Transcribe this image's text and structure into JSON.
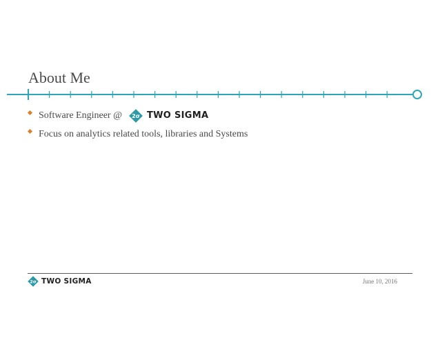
{
  "slide": {
    "title": "About Me",
    "bullets": [
      {
        "text": "Software Engineer @",
        "logo_text": "TWO SIGMA"
      },
      {
        "text": "Focus on analytics related tools, libraries and Systems"
      }
    ]
  },
  "footer": {
    "logo_text": "TWO SIGMA",
    "date": "June 10, 2016"
  },
  "logo_mark_text": "2σ",
  "colors": {
    "accent_teal": "#2aa6b8",
    "bullet_orange": "#d9822b",
    "title_text": "#4a4a4a",
    "logo_mark_teal": "#2c9aa6"
  },
  "icons": [
    "two-sigma-logo-icon",
    "timeline-end-circle-icon",
    "bullet-diamond-icon"
  ]
}
